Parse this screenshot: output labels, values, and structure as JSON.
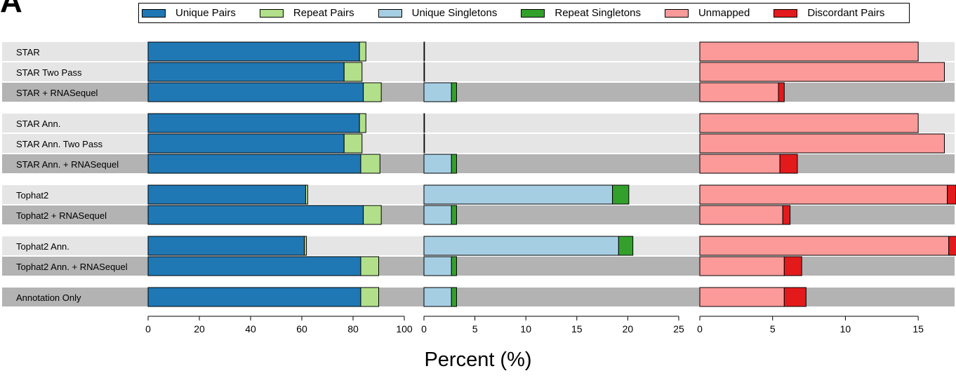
{
  "panel_label": "A",
  "xlabel": "Percent (%)",
  "legend": [
    {
      "label": "Unique Pairs",
      "color": "#1f78b4"
    },
    {
      "label": "Repeat Pairs",
      "color": "#b2df8a"
    },
    {
      "label": "Unique Singletons",
      "color": "#a6cee3"
    },
    {
      "label": "Repeat Singletons",
      "color": "#33a02c"
    },
    {
      "label": "Unmapped",
      "color": "#fb9a99"
    },
    {
      "label": "Discordant Pairs",
      "color": "#e31a1c"
    }
  ],
  "chart_data": {
    "type": "bar",
    "orientation": "horizontal",
    "stacked": true,
    "xlabel": "Percent (%)",
    "row_background": {
      "light": "#e5e5e5",
      "dark": "#b3b3b3"
    },
    "categories": [
      "STAR",
      "STAR Two Pass",
      "STAR + RNASequel",
      "STAR Ann.",
      "STAR Ann. Two Pass",
      "STAR Ann. + RNASequel",
      "Tophat2",
      "Tophat2 + RNASequel",
      "Tophat2 Ann.",
      "Tophat2 Ann. + RNASequel",
      "Annotation Only"
    ],
    "groups": [
      [
        0,
        1,
        2
      ],
      [
        3,
        4,
        5
      ],
      [
        6,
        7
      ],
      [
        8,
        9
      ],
      [
        10
      ]
    ],
    "shaded": [
      false,
      false,
      true,
      false,
      false,
      true,
      false,
      true,
      false,
      true,
      true
    ],
    "panels": [
      {
        "xlim": [
          0,
          100
        ],
        "ticks": [
          0,
          20,
          40,
          60,
          80,
          100
        ],
        "series": [
          {
            "name": "Unique Pairs",
            "color": "#1f78b4",
            "values": [
              82.5,
              76.5,
              84,
              82.5,
              76.5,
              83,
              61.5,
              84,
              61,
              83,
              83
            ]
          },
          {
            "name": "Repeat Pairs",
            "color": "#b2df8a",
            "values": [
              2.5,
              7,
              7,
              2.5,
              7,
              7.5,
              0.8,
              7,
              0.8,
              7,
              7
            ]
          }
        ]
      },
      {
        "xlim": [
          0,
          25
        ],
        "ticks": [
          0,
          5,
          10,
          15,
          20,
          25
        ],
        "series": [
          {
            "name": "Unique Singletons",
            "color": "#a6cee3",
            "values": [
              0.05,
              0.05,
              2.7,
              0.05,
              0.05,
              2.7,
              18.5,
              2.7,
              19.1,
              2.7,
              2.7
            ]
          },
          {
            "name": "Repeat Singletons",
            "color": "#33a02c",
            "values": [
              0,
              0,
              0.5,
              0,
              0,
              0.5,
              1.6,
              0.5,
              1.4,
              0.5,
              0.5
            ]
          }
        ]
      },
      {
        "xlim": [
          0,
          17.5
        ],
        "ticks": [
          0,
          5,
          10,
          15
        ],
        "series": [
          {
            "name": "Unmapped",
            "color": "#fb9a99",
            "values": [
              15,
              16.8,
              5.4,
              15,
              16.8,
              5.5,
              17,
              5.7,
              17.1,
              5.8,
              5.8
            ]
          },
          {
            "name": "Discordant Pairs",
            "color": "#e31a1c",
            "values": [
              0,
              0,
              0.4,
              0,
              0,
              1.2,
              0.6,
              0.5,
              0.8,
              1.2,
              1.5
            ]
          }
        ]
      }
    ]
  }
}
